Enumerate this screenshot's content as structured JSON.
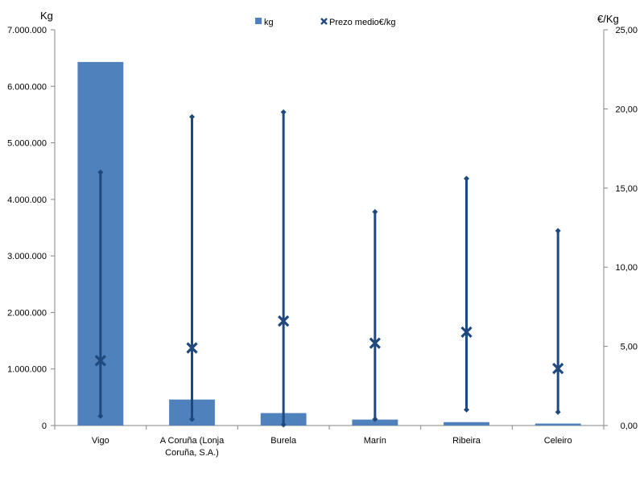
{
  "chart_data": {
    "type": "bar",
    "categories": [
      "Vigo",
      "A Coruña (Lonja Coruña, S.A.)",
      "Burela",
      "Marín",
      "Ribeira",
      "Celeiro"
    ],
    "category_lines": [
      [
        "Vigo"
      ],
      [
        "A Coruña (Lonja",
        "Coruña, S.A.)"
      ],
      [
        "Burela"
      ],
      [
        "Marín"
      ],
      [
        "Ribeira"
      ],
      [
        "Celeiro"
      ]
    ],
    "y_left": {
      "label": "Kg",
      "ylim": [
        0,
        7000000
      ],
      "ticks": [
        0,
        1000000,
        2000000,
        3000000,
        4000000,
        5000000,
        6000000,
        7000000
      ],
      "tick_labels": [
        "0",
        "1.000.000",
        "2.000.000",
        "3.000.000",
        "4.000.000",
        "5.000.000",
        "6.000.000",
        "7.000.000"
      ]
    },
    "y_right": {
      "label": "€/Kg",
      "ylim": [
        0,
        25
      ],
      "ticks": [
        0,
        5,
        10,
        15,
        20,
        25
      ],
      "tick_labels": [
        "0,00",
        "5,00",
        "10,00",
        "15,00",
        "20,00",
        "25,00"
      ]
    },
    "series": [
      {
        "name": "kg",
        "kind": "bar",
        "axis": "left",
        "color": "#4f81bd",
        "values": [
          6430000,
          460000,
          220000,
          105000,
          60000,
          35000
        ]
      },
      {
        "name": "Prezo medio€/kg",
        "kind": "marker",
        "marker": "x",
        "axis": "right",
        "color": "#1f497d",
        "values": [
          4.1,
          4.9,
          6.6,
          5.2,
          5.9,
          3.6
        ]
      },
      {
        "kind": "range",
        "axis": "right",
        "color": "#1f497d",
        "min": [
          0.6,
          0.4,
          0.05,
          0.4,
          1.0,
          0.85
        ],
        "max": [
          16.0,
          19.5,
          19.8,
          13.5,
          15.6,
          12.3
        ]
      }
    ],
    "legend_position": "top-center",
    "grid": false
  }
}
